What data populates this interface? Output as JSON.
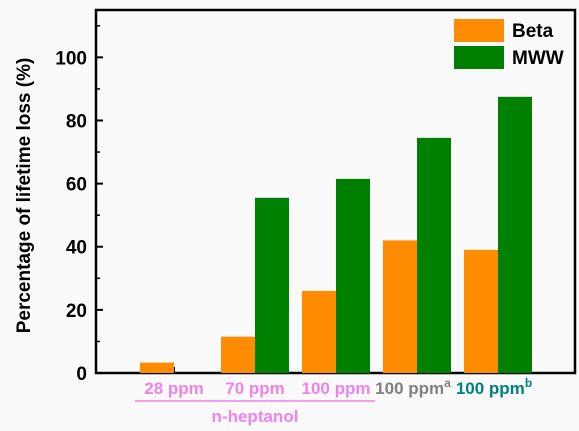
{
  "chart_data": {
    "type": "bar",
    "ylabel": "Percentage of lifetime loss (%)",
    "ylim": [
      0,
      115
    ],
    "yticks": [
      0,
      20,
      40,
      60,
      80,
      100
    ],
    "categories": [
      {
        "label": "28 ppm",
        "sup": "",
        "color": "#ee82ee"
      },
      {
        "label": "70 ppm",
        "sup": "",
        "color": "#ee82ee"
      },
      {
        "label": "100 ppm",
        "sup": "",
        "color": "#ee82ee"
      },
      {
        "label": "100 ppm",
        "sup": "a",
        "color": "#808080"
      },
      {
        "label": "100 ppm",
        "sup": "b",
        "color": "#008080"
      }
    ],
    "group_label": {
      "text": "n-heptanol",
      "color": "#ee82ee",
      "spans": [
        0,
        2
      ]
    },
    "series": [
      {
        "name": "Beta",
        "color": "#ff8c00",
        "values": [
          3.3,
          11.5,
          26,
          42,
          39
        ]
      },
      {
        "name": "MWW",
        "color": "#008000",
        "values": [
          0,
          55.5,
          61.5,
          74.5,
          87.5
        ]
      }
    ],
    "legend": "top-right",
    "grid": false
  }
}
